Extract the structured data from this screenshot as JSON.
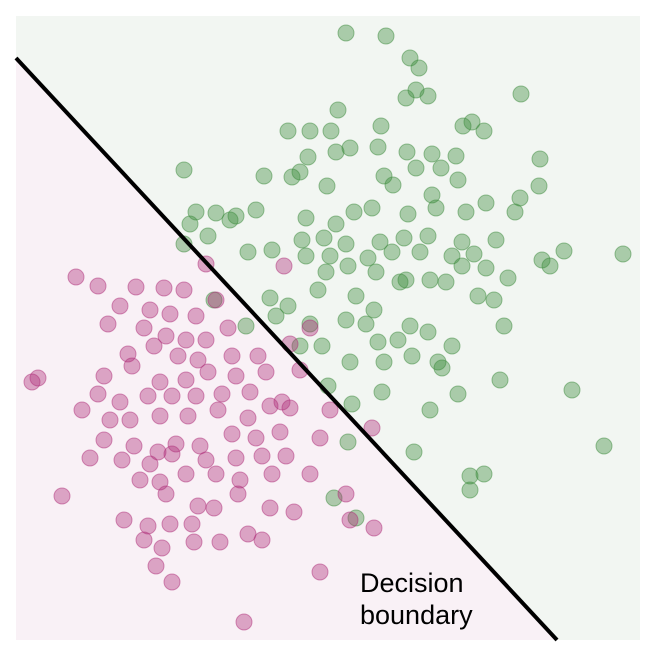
{
  "chart_data": {
    "type": "scatter",
    "annotation": "Decision boundary",
    "xlim": [
      16,
      640
    ],
    "ylim": [
      640,
      16
    ],
    "background_colors": [
      "#f9f1f6",
      "#f2f6f2"
    ],
    "boundary": {
      "x": [
        16,
        557
      ],
      "y": [
        58,
        640
      ],
      "color": "#000000"
    },
    "series": [
      {
        "color": "#3d8b3d",
        "x": [
          346,
          386,
          410,
          419,
          406,
          428,
          416,
          521,
          338,
          288,
          310,
          331,
          381,
          463,
          472,
          484,
          350,
          336,
          308,
          378,
          407,
          432,
          456,
          540,
          184,
          264,
          292,
          300,
          384,
          416,
          441,
          393,
          458,
          539,
          327,
          432,
          486,
          520,
          515,
          196,
          216,
          236,
          256,
          190,
          306,
          336,
          354,
          372,
          408,
          436,
          466,
          230,
          208,
          184,
          302,
          324,
          346,
          380,
          404,
          428,
          462,
          496,
          248,
          272,
          306,
          330,
          368,
          392,
          420,
          452,
          474,
          564,
          623,
          542,
          550,
          326,
          348,
          376,
          406,
          430,
          462,
          486,
          508,
          270,
          288,
          318,
          356,
          374,
          400,
          446,
          478,
          494,
          214,
          246,
          276,
          310,
          346,
          366,
          410,
          428,
          504,
          300,
          322,
          378,
          398,
          452,
          350,
          384,
          412,
          438,
          442,
          500,
          328,
          382,
          352,
          430,
          458,
          572,
          348,
          414,
          604,
          470,
          484,
          470,
          334,
          356
        ],
        "y": [
          33,
          36,
          58,
          68,
          98,
          96,
          90,
          94,
          110,
          131,
          131,
          131,
          126,
          126,
          122,
          131,
          148,
          152,
          157,
          147,
          152,
          154,
          156,
          159,
          170,
          176,
          177,
          172,
          176,
          168,
          168,
          185,
          180,
          186,
          186,
          195,
          203,
          198,
          212,
          212,
          213,
          216,
          210,
          224,
          218,
          224,
          212,
          208,
          214,
          208,
          212,
          220,
          236,
          244,
          240,
          238,
          244,
          242,
          238,
          236,
          242,
          240,
          252,
          250,
          256,
          256,
          258,
          252,
          252,
          256,
          254,
          251,
          254,
          260,
          266,
          272,
          266,
          272,
          280,
          280,
          266,
          268,
          278,
          298,
          306,
          290,
          296,
          310,
          282,
          282,
          296,
          300,
          300,
          326,
          316,
          324,
          320,
          324,
          326,
          332,
          326,
          346,
          346,
          342,
          340,
          346,
          362,
          362,
          356,
          362,
          368,
          380,
          386,
          392,
          404,
          410,
          394,
          390,
          442,
          452,
          446,
          476,
          474,
          490,
          498,
          518
        ]
      },
      {
        "color": "#b0307a",
        "x": [
          76,
          98,
          136,
          164,
          184,
          206,
          120,
          150,
          170,
          196,
          216,
          228,
          108,
          144,
          166,
          186,
          206,
          128,
          154,
          178,
          198,
          232,
          258,
          284,
          38,
          32,
          104,
          132,
          160,
          186,
          208,
          236,
          266,
          290,
          310,
          300,
          98,
          120,
          148,
          172,
          196,
          222,
          250,
          282,
          82,
          110,
          130,
          160,
          188,
          218,
          248,
          270,
          290,
          104,
          134,
          158,
          176,
          200,
          232,
          256,
          280,
          320,
          330,
          372,
          90,
          122,
          150,
          172,
          206,
          236,
          262,
          286,
          140,
          160,
          186,
          216,
          240,
          272,
          310,
          62,
          166,
          198,
          238,
          270,
          294,
          124,
          148,
          170,
          192,
          214,
          346,
          350,
          374,
          144,
          162,
          194,
          220,
          248,
          262,
          156,
          172,
          320,
          244
        ],
        "y": [
          277,
          286,
          287,
          288,
          290,
          264,
          306,
          310,
          314,
          316,
          300,
          328,
          324,
          328,
          336,
          340,
          340,
          354,
          346,
          356,
          360,
          356,
          356,
          266,
          378,
          382,
          376,
          366,
          382,
          380,
          372,
          376,
          372,
          344,
          328,
          370,
          394,
          402,
          396,
          396,
          396,
          394,
          392,
          402,
          410,
          420,
          420,
          416,
          416,
          410,
          418,
          406,
          408,
          440,
          446,
          452,
          444,
          446,
          434,
          438,
          432,
          438,
          410,
          428,
          458,
          460,
          464,
          454,
          460,
          458,
          456,
          456,
          480,
          482,
          474,
          474,
          480,
          474,
          474,
          496,
          494,
          506,
          494,
          508,
          512,
          520,
          526,
          524,
          524,
          508,
          494,
          520,
          528,
          540,
          548,
          542,
          542,
          534,
          540,
          566,
          582,
          572,
          622
        ]
      }
    ]
  }
}
